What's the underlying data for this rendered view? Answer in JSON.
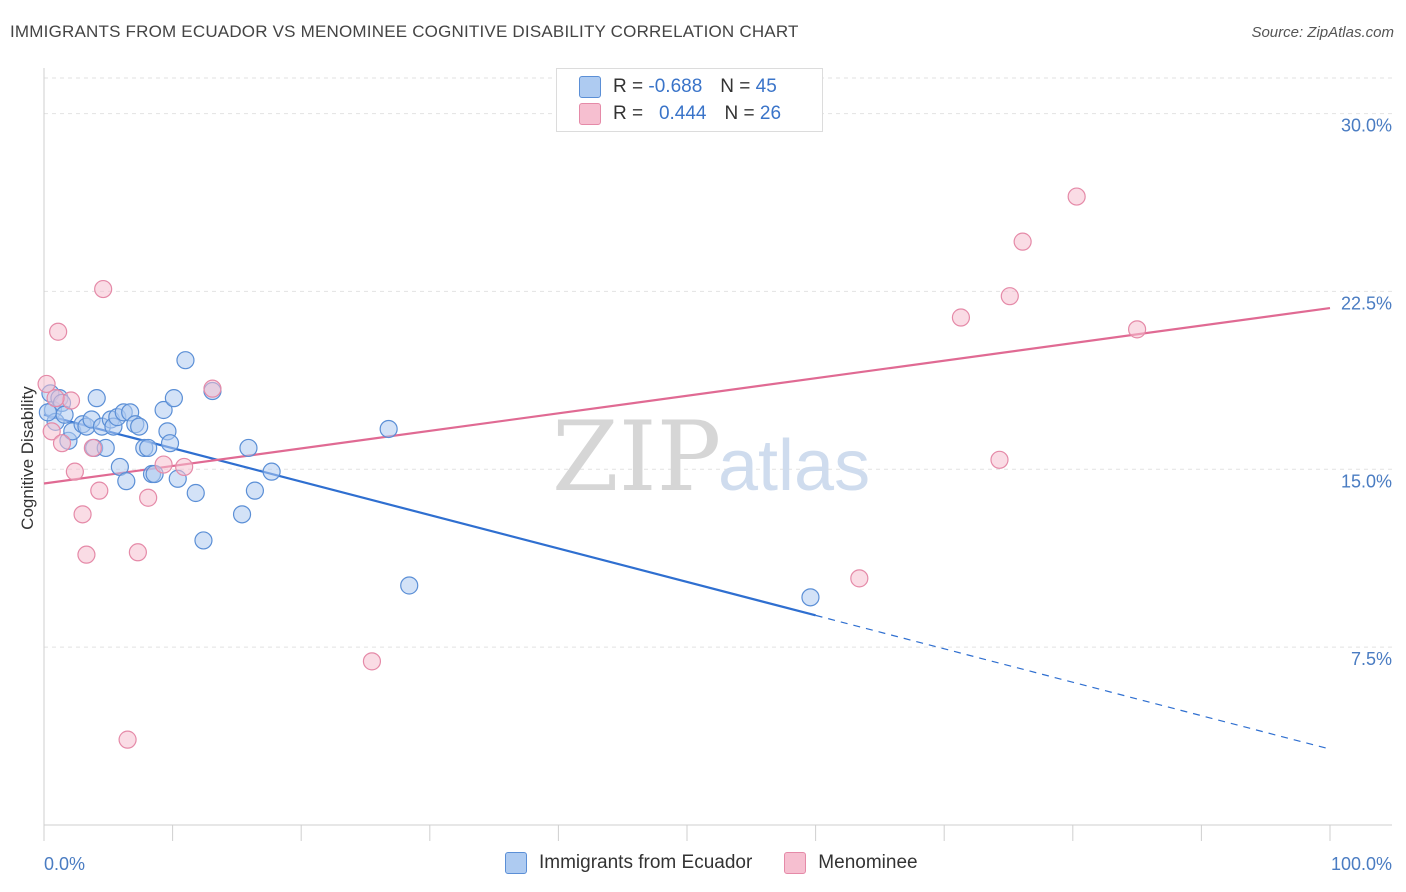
{
  "header": {
    "title": "IMMIGRANTS FROM ECUADOR VS MENOMINEE COGNITIVE DISABILITY CORRELATION CHART",
    "source": "Source: ZipAtlas.com"
  },
  "legend_top": {
    "rows": [
      {
        "r_label": "R =",
        "r_value": "-0.688",
        "n_label": "N =",
        "n_value": "45"
      },
      {
        "r_label": "R =",
        "r_value": "0.444",
        "n_label": "N =",
        "n_value": "26"
      }
    ]
  },
  "legend_bottom": {
    "items": [
      {
        "label": "Immigrants from Ecuador"
      },
      {
        "label": "Menominee"
      }
    ]
  },
  "colors": {
    "blue_fill": "#aecbf1",
    "blue_stroke": "#5b8fd6",
    "blue_line": "#2f6fd0",
    "pink_fill": "#f6bfd0",
    "pink_stroke": "#e58aa8",
    "pink_line": "#e06a93",
    "grid": "#e2e2e2",
    "axis_text": "#4a7cc2"
  },
  "chart_data": {
    "type": "scatter",
    "title": "IMMIGRANTS FROM ECUADOR VS MENOMINEE COGNITIVE DISABILITY CORRELATION CHART",
    "xlabel": "",
    "ylabel": "Cognitive Disability",
    "xlim": [
      0,
      100
    ],
    "ylim": [
      0,
      31.5
    ],
    "x_tick_labels": [
      "0.0%",
      "100.0%"
    ],
    "y_ticks": [
      7.5,
      15.0,
      22.5,
      30.0
    ],
    "y_tick_labels": [
      "7.5%",
      "15.0%",
      "22.5%",
      "30.0%"
    ],
    "watermark": [
      "ZIP",
      "atlas"
    ],
    "series": [
      {
        "name": "Immigrants from Ecuador",
        "color": "blue",
        "points": [
          [
            0.5,
            18.2
          ],
          [
            0.7,
            17.5
          ],
          [
            0.9,
            17.0
          ],
          [
            1.2,
            18.0
          ],
          [
            1.4,
            17.8
          ],
          [
            1.6,
            17.3
          ],
          [
            1.9,
            16.2
          ],
          [
            2.2,
            16.6
          ],
          [
            3.0,
            16.9
          ],
          [
            3.3,
            16.8
          ],
          [
            3.7,
            17.1
          ],
          [
            3.9,
            15.9
          ],
          [
            4.1,
            18.0
          ],
          [
            4.5,
            16.8
          ],
          [
            4.8,
            15.9
          ],
          [
            5.2,
            17.1
          ],
          [
            5.4,
            16.8
          ],
          [
            5.7,
            17.2
          ],
          [
            5.9,
            15.1
          ],
          [
            6.2,
            17.4
          ],
          [
            6.4,
            14.5
          ],
          [
            6.7,
            17.4
          ],
          [
            7.1,
            16.9
          ],
          [
            7.4,
            16.8
          ],
          [
            7.8,
            15.9
          ],
          [
            8.1,
            15.9
          ],
          [
            8.4,
            14.8
          ],
          [
            8.6,
            14.8
          ],
          [
            9.3,
            17.5
          ],
          [
            9.6,
            16.6
          ],
          [
            9.8,
            16.1
          ],
          [
            10.1,
            18.0
          ],
          [
            10.4,
            14.6
          ],
          [
            11.0,
            19.6
          ],
          [
            11.8,
            14.0
          ],
          [
            12.4,
            12.0
          ],
          [
            13.1,
            18.3
          ],
          [
            15.4,
            13.1
          ],
          [
            15.9,
            15.9
          ],
          [
            16.4,
            14.1
          ],
          [
            17.7,
            14.9
          ],
          [
            26.8,
            16.7
          ],
          [
            28.4,
            10.1
          ],
          [
            59.6,
            9.6
          ],
          [
            0.3,
            17.4
          ]
        ]
      },
      {
        "name": "Menominee",
        "color": "pink",
        "points": [
          [
            0.2,
            18.6
          ],
          [
            0.6,
            16.6
          ],
          [
            1.1,
            20.8
          ],
          [
            1.4,
            16.1
          ],
          [
            2.1,
            17.9
          ],
          [
            2.4,
            14.9
          ],
          [
            3.0,
            13.1
          ],
          [
            3.3,
            11.4
          ],
          [
            3.8,
            15.9
          ],
          [
            4.3,
            14.1
          ],
          [
            4.6,
            22.6
          ],
          [
            7.3,
            11.5
          ],
          [
            8.1,
            13.8
          ],
          [
            9.3,
            15.2
          ],
          [
            10.9,
            15.1
          ],
          [
            13.1,
            18.4
          ],
          [
            25.5,
            6.9
          ],
          [
            6.5,
            3.6
          ],
          [
            63.4,
            10.4
          ],
          [
            71.3,
            21.4
          ],
          [
            74.3,
            15.4
          ],
          [
            75.1,
            22.3
          ],
          [
            76.1,
            24.6
          ],
          [
            80.3,
            26.5
          ],
          [
            85.0,
            20.9
          ],
          [
            0.9,
            18.0
          ]
        ]
      }
    ],
    "trend_lines": [
      {
        "series": "Immigrants from Ecuador",
        "x_solid": [
          0,
          60
        ],
        "x_dashed": [
          60,
          100
        ],
        "y_at_0": 17.3,
        "y_at_100": 3.2
      },
      {
        "series": "Menominee",
        "x_solid": [
          0,
          100
        ],
        "y_at_0": 14.4,
        "y_at_100": 21.8
      }
    ]
  }
}
